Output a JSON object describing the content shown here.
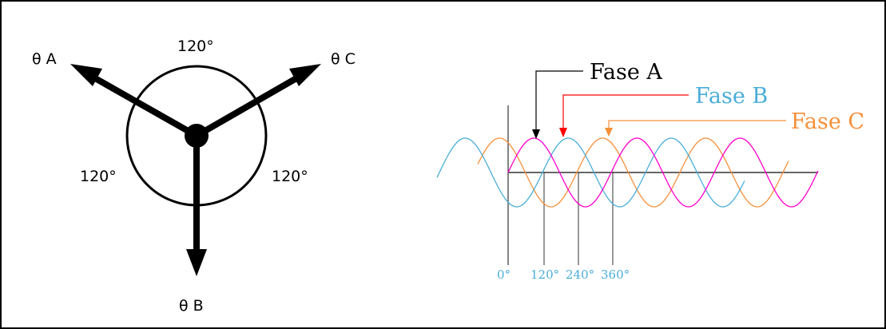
{
  "phasor": {
    "labels": {
      "a": "θ A",
      "b": "θ B",
      "c": "θ C"
    },
    "angles": {
      "top": "120°",
      "left": "120°",
      "right": "120°"
    }
  },
  "waveform": {
    "callouts": {
      "a": "Fase A",
      "b": "Fase B",
      "c": "Fase C"
    },
    "ticks": [
      "0°",
      "120°",
      "240°",
      "360°"
    ],
    "colors": {
      "a": "#ff00cc",
      "b": "#4aaed8",
      "c": "#f5903a",
      "arrow_a": "#000000",
      "arrow_b": "#ff0000",
      "arrow_c": "#f5903a",
      "ticks": "#4aaed8"
    }
  }
}
